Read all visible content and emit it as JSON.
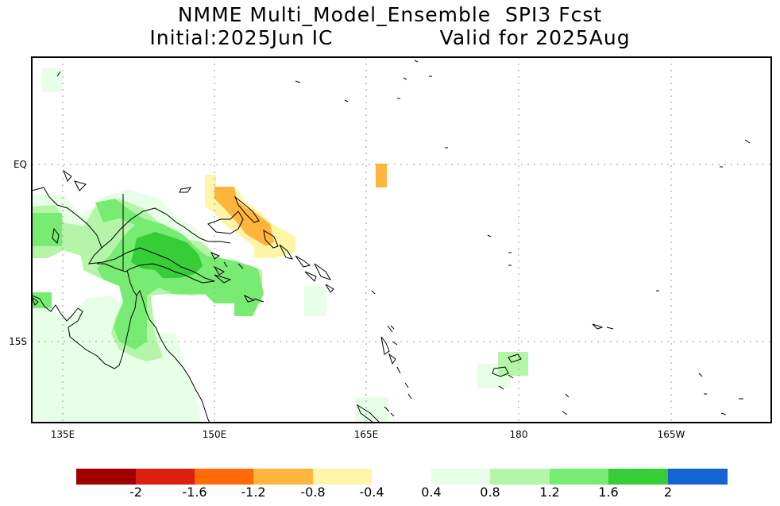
{
  "title": {
    "line1": "NMME Multi_Model_Ensemble  SPI3 Fcst",
    "line2_left": "Initial:2025Jun IC",
    "line2_right": "Valid for 2025Aug"
  },
  "map": {
    "lon_range": [
      134,
      194
    ],
    "lat_range": [
      -22,
      9
    ],
    "lon_ticks": [
      {
        "lon": 135,
        "label": "135E"
      },
      {
        "lon": 150,
        "label": "150E"
      },
      {
        "lon": 165,
        "label": "165E"
      },
      {
        "lon": 180,
        "label": "180"
      },
      {
        "lon": 195,
        "label": "165W"
      }
    ],
    "lat_ticks": [
      {
        "lat": 0,
        "label": "EQ"
      },
      {
        "lat": -15,
        "label": "15S"
      }
    ],
    "grid": true
  },
  "colorbar": {
    "dry": {
      "colors": [
        "#a00000",
        "#dd1f10",
        "#ff6a08",
        "#ffb43c",
        "#fff5a8"
      ],
      "labels": [
        "-2",
        "-1.6",
        "-1.2",
        "-0.8",
        "-0.4"
      ]
    },
    "wet": {
      "colors": [
        "#e6ffe6",
        "#b4f5a8",
        "#78eb73",
        "#37cd37",
        "#1464d2"
      ],
      "labels": [
        "0.4",
        "0.8",
        "1.2",
        "1.6",
        "2"
      ]
    }
  }
}
